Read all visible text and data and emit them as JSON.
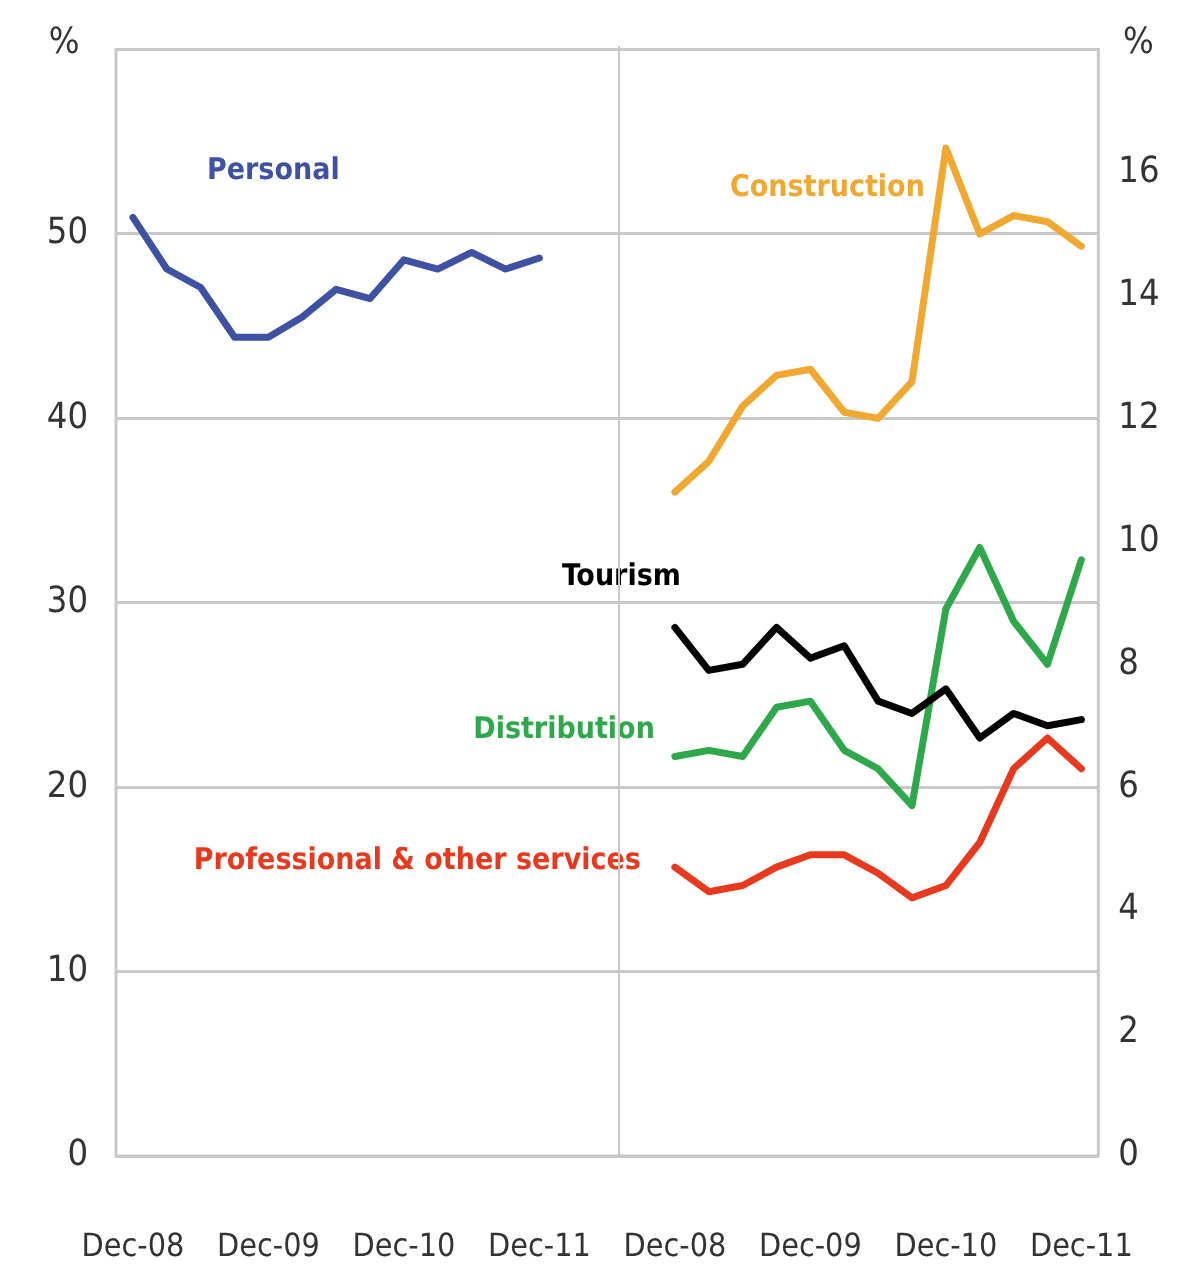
{
  "chart_data": {
    "type": "line",
    "ylabel": "%",
    "y2label": "%",
    "categories": [
      "Dec-08",
      null,
      null,
      null,
      "Dec-09",
      null,
      null,
      null,
      "Dec-10",
      null,
      null,
      null,
      "Dec-11",
      null,
      null,
      null,
      "Dec-08",
      null,
      null,
      null,
      "Dec-09",
      null,
      null,
      null,
      "Dec-10",
      null,
      null,
      null,
      "Dec-11"
    ],
    "series": [
      {
        "name": "Personal",
        "color": "#3f51a3",
        "values": [
          50.9,
          48.1,
          47.1,
          44.4,
          44.4,
          45.5,
          47.0,
          46.5,
          48.6,
          48.1,
          49.0,
          48.1,
          48.7,
          null,
          null,
          null,
          null,
          null,
          null,
          null,
          null,
          null,
          null,
          null,
          null,
          null,
          null,
          null,
          null
        ]
      },
      {
        "name": "Construction",
        "color": "#f0a830",
        "axis": "y2",
        "values": [
          null,
          null,
          null,
          null,
          null,
          null,
          null,
          null,
          null,
          null,
          null,
          null,
          null,
          null,
          null,
          null,
          10.8,
          11.3,
          12.2,
          12.7,
          12.8,
          12.1,
          12.0,
          12.6,
          16.4,
          15.0,
          15.3,
          15.2,
          14.8
        ]
      },
      {
        "name": "Tourism",
        "color": "#000000",
        "axis": "y2",
        "values": [
          null,
          null,
          null,
          null,
          null,
          null,
          null,
          null,
          null,
          null,
          null,
          null,
          null,
          null,
          null,
          null,
          8.6,
          7.9,
          8.0,
          8.6,
          8.1,
          8.3,
          7.4,
          7.2,
          7.6,
          6.8,
          7.2,
          7.0,
          7.1
        ]
      },
      {
        "name": "Distribution",
        "color": "#2ea84a",
        "axis": "y2",
        "values": [
          null,
          null,
          null,
          null,
          null,
          null,
          null,
          null,
          null,
          null,
          null,
          null,
          null,
          null,
          null,
          null,
          6.5,
          6.6,
          6.5,
          7.3,
          7.4,
          6.6,
          6.3,
          5.7,
          8.9,
          9.9,
          8.7,
          8.0,
          9.7
        ]
      },
      {
        "name": "Professional & other services",
        "color": "#e8391e",
        "axis": "y2",
        "values": [
          null,
          null,
          null,
          null,
          null,
          null,
          null,
          null,
          null,
          null,
          null,
          null,
          null,
          null,
          null,
          null,
          4.7,
          4.3,
          4.4,
          4.7,
          4.9,
          4.9,
          4.6,
          4.2,
          4.4,
          5.1,
          6.3,
          6.8,
          6.3
        ]
      }
    ],
    "ylim": [
      0,
      60
    ],
    "yticks": [
      0,
      10,
      20,
      30,
      40,
      50
    ],
    "y2lim": [
      0,
      18
    ],
    "y2ticks": [
      0,
      2,
      4,
      6,
      8,
      10,
      12,
      14,
      16
    ],
    "grid": "y",
    "legend": false,
    "marker": "none",
    "line_style": "solid"
  }
}
